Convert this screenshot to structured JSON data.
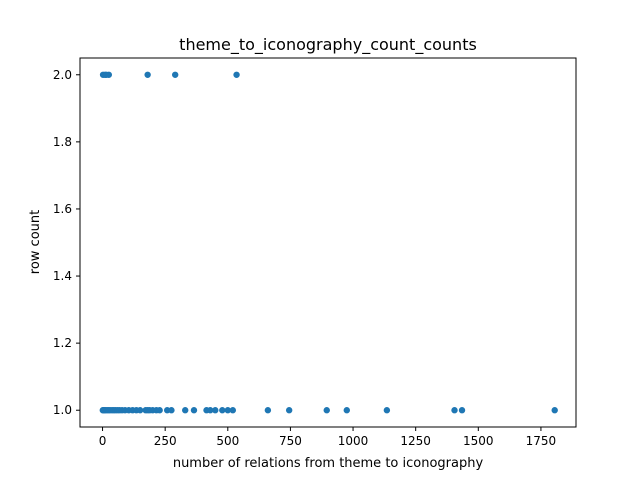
{
  "chart_data": {
    "type": "scatter",
    "title": "theme_to_iconography_count_counts",
    "xlabel": "number of relations from theme to iconography",
    "ylabel": "row count",
    "xlim": [
      -90,
      1890
    ],
    "ylim": [
      0.95,
      2.05
    ],
    "xticks": [
      0,
      250,
      500,
      750,
      1000,
      1250,
      1500,
      1750
    ],
    "yticks": [
      1.0,
      1.2,
      1.4,
      1.6,
      1.8,
      2.0
    ],
    "ytick_labels": [
      "1.0",
      "1.2",
      "1.4",
      "1.6",
      "1.8",
      "2.0"
    ],
    "grid": false,
    "color": "#1f77b4",
    "points": [
      {
        "x": 2,
        "y": 2
      },
      {
        "x": 10,
        "y": 2
      },
      {
        "x": 15,
        "y": 2
      },
      {
        "x": 25,
        "y": 2
      },
      {
        "x": 180,
        "y": 2
      },
      {
        "x": 290,
        "y": 2
      },
      {
        "x": 535,
        "y": 2
      },
      {
        "x": 1,
        "y": 1
      },
      {
        "x": 4,
        "y": 1
      },
      {
        "x": 8,
        "y": 1
      },
      {
        "x": 12,
        "y": 1
      },
      {
        "x": 18,
        "y": 1
      },
      {
        "x": 24,
        "y": 1
      },
      {
        "x": 30,
        "y": 1
      },
      {
        "x": 38,
        "y": 1
      },
      {
        "x": 45,
        "y": 1
      },
      {
        "x": 52,
        "y": 1
      },
      {
        "x": 60,
        "y": 1
      },
      {
        "x": 68,
        "y": 1
      },
      {
        "x": 78,
        "y": 1
      },
      {
        "x": 90,
        "y": 1
      },
      {
        "x": 105,
        "y": 1
      },
      {
        "x": 120,
        "y": 1
      },
      {
        "x": 135,
        "y": 1
      },
      {
        "x": 150,
        "y": 1
      },
      {
        "x": 172,
        "y": 1
      },
      {
        "x": 180,
        "y": 1
      },
      {
        "x": 188,
        "y": 1
      },
      {
        "x": 200,
        "y": 1
      },
      {
        "x": 215,
        "y": 1
      },
      {
        "x": 228,
        "y": 1
      },
      {
        "x": 258,
        "y": 1
      },
      {
        "x": 275,
        "y": 1
      },
      {
        "x": 330,
        "y": 1
      },
      {
        "x": 365,
        "y": 1
      },
      {
        "x": 415,
        "y": 1
      },
      {
        "x": 430,
        "y": 1
      },
      {
        "x": 450,
        "y": 1
      },
      {
        "x": 478,
        "y": 1
      },
      {
        "x": 500,
        "y": 1
      },
      {
        "x": 520,
        "y": 1
      },
      {
        "x": 660,
        "y": 1
      },
      {
        "x": 745,
        "y": 1
      },
      {
        "x": 895,
        "y": 1
      },
      {
        "x": 975,
        "y": 1
      },
      {
        "x": 1135,
        "y": 1
      },
      {
        "x": 1405,
        "y": 1
      },
      {
        "x": 1435,
        "y": 1
      },
      {
        "x": 1805,
        "y": 1
      }
    ]
  }
}
